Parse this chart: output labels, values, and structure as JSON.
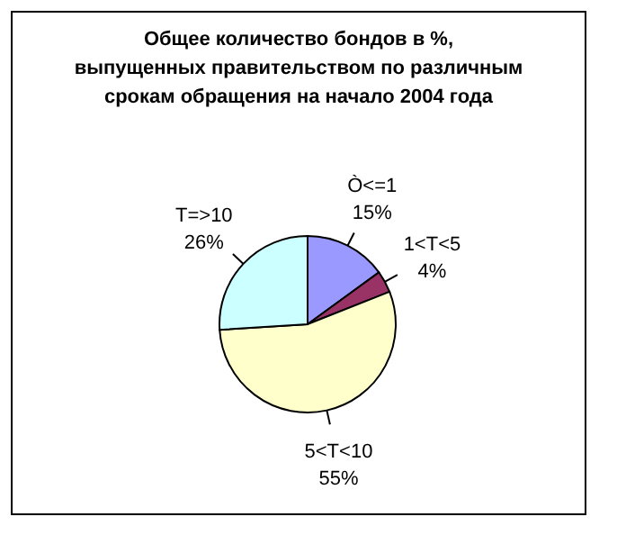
{
  "chart_data": {
    "type": "pie",
    "title": "Общее количество бондов в %,\nвыпущенных правительством по различным\nсрокам обращения на начало 2004 года",
    "categories": [
      "Ò<=1",
      "1<T<5",
      "5<T<10",
      "T=>10"
    ],
    "values": [
      15,
      4,
      55,
      26
    ],
    "value_labels": [
      "15%",
      "4%",
      "55%",
      "26%"
    ],
    "colors": [
      "#9999ff",
      "#993366",
      "#ffffcc",
      "#ccffff"
    ]
  }
}
